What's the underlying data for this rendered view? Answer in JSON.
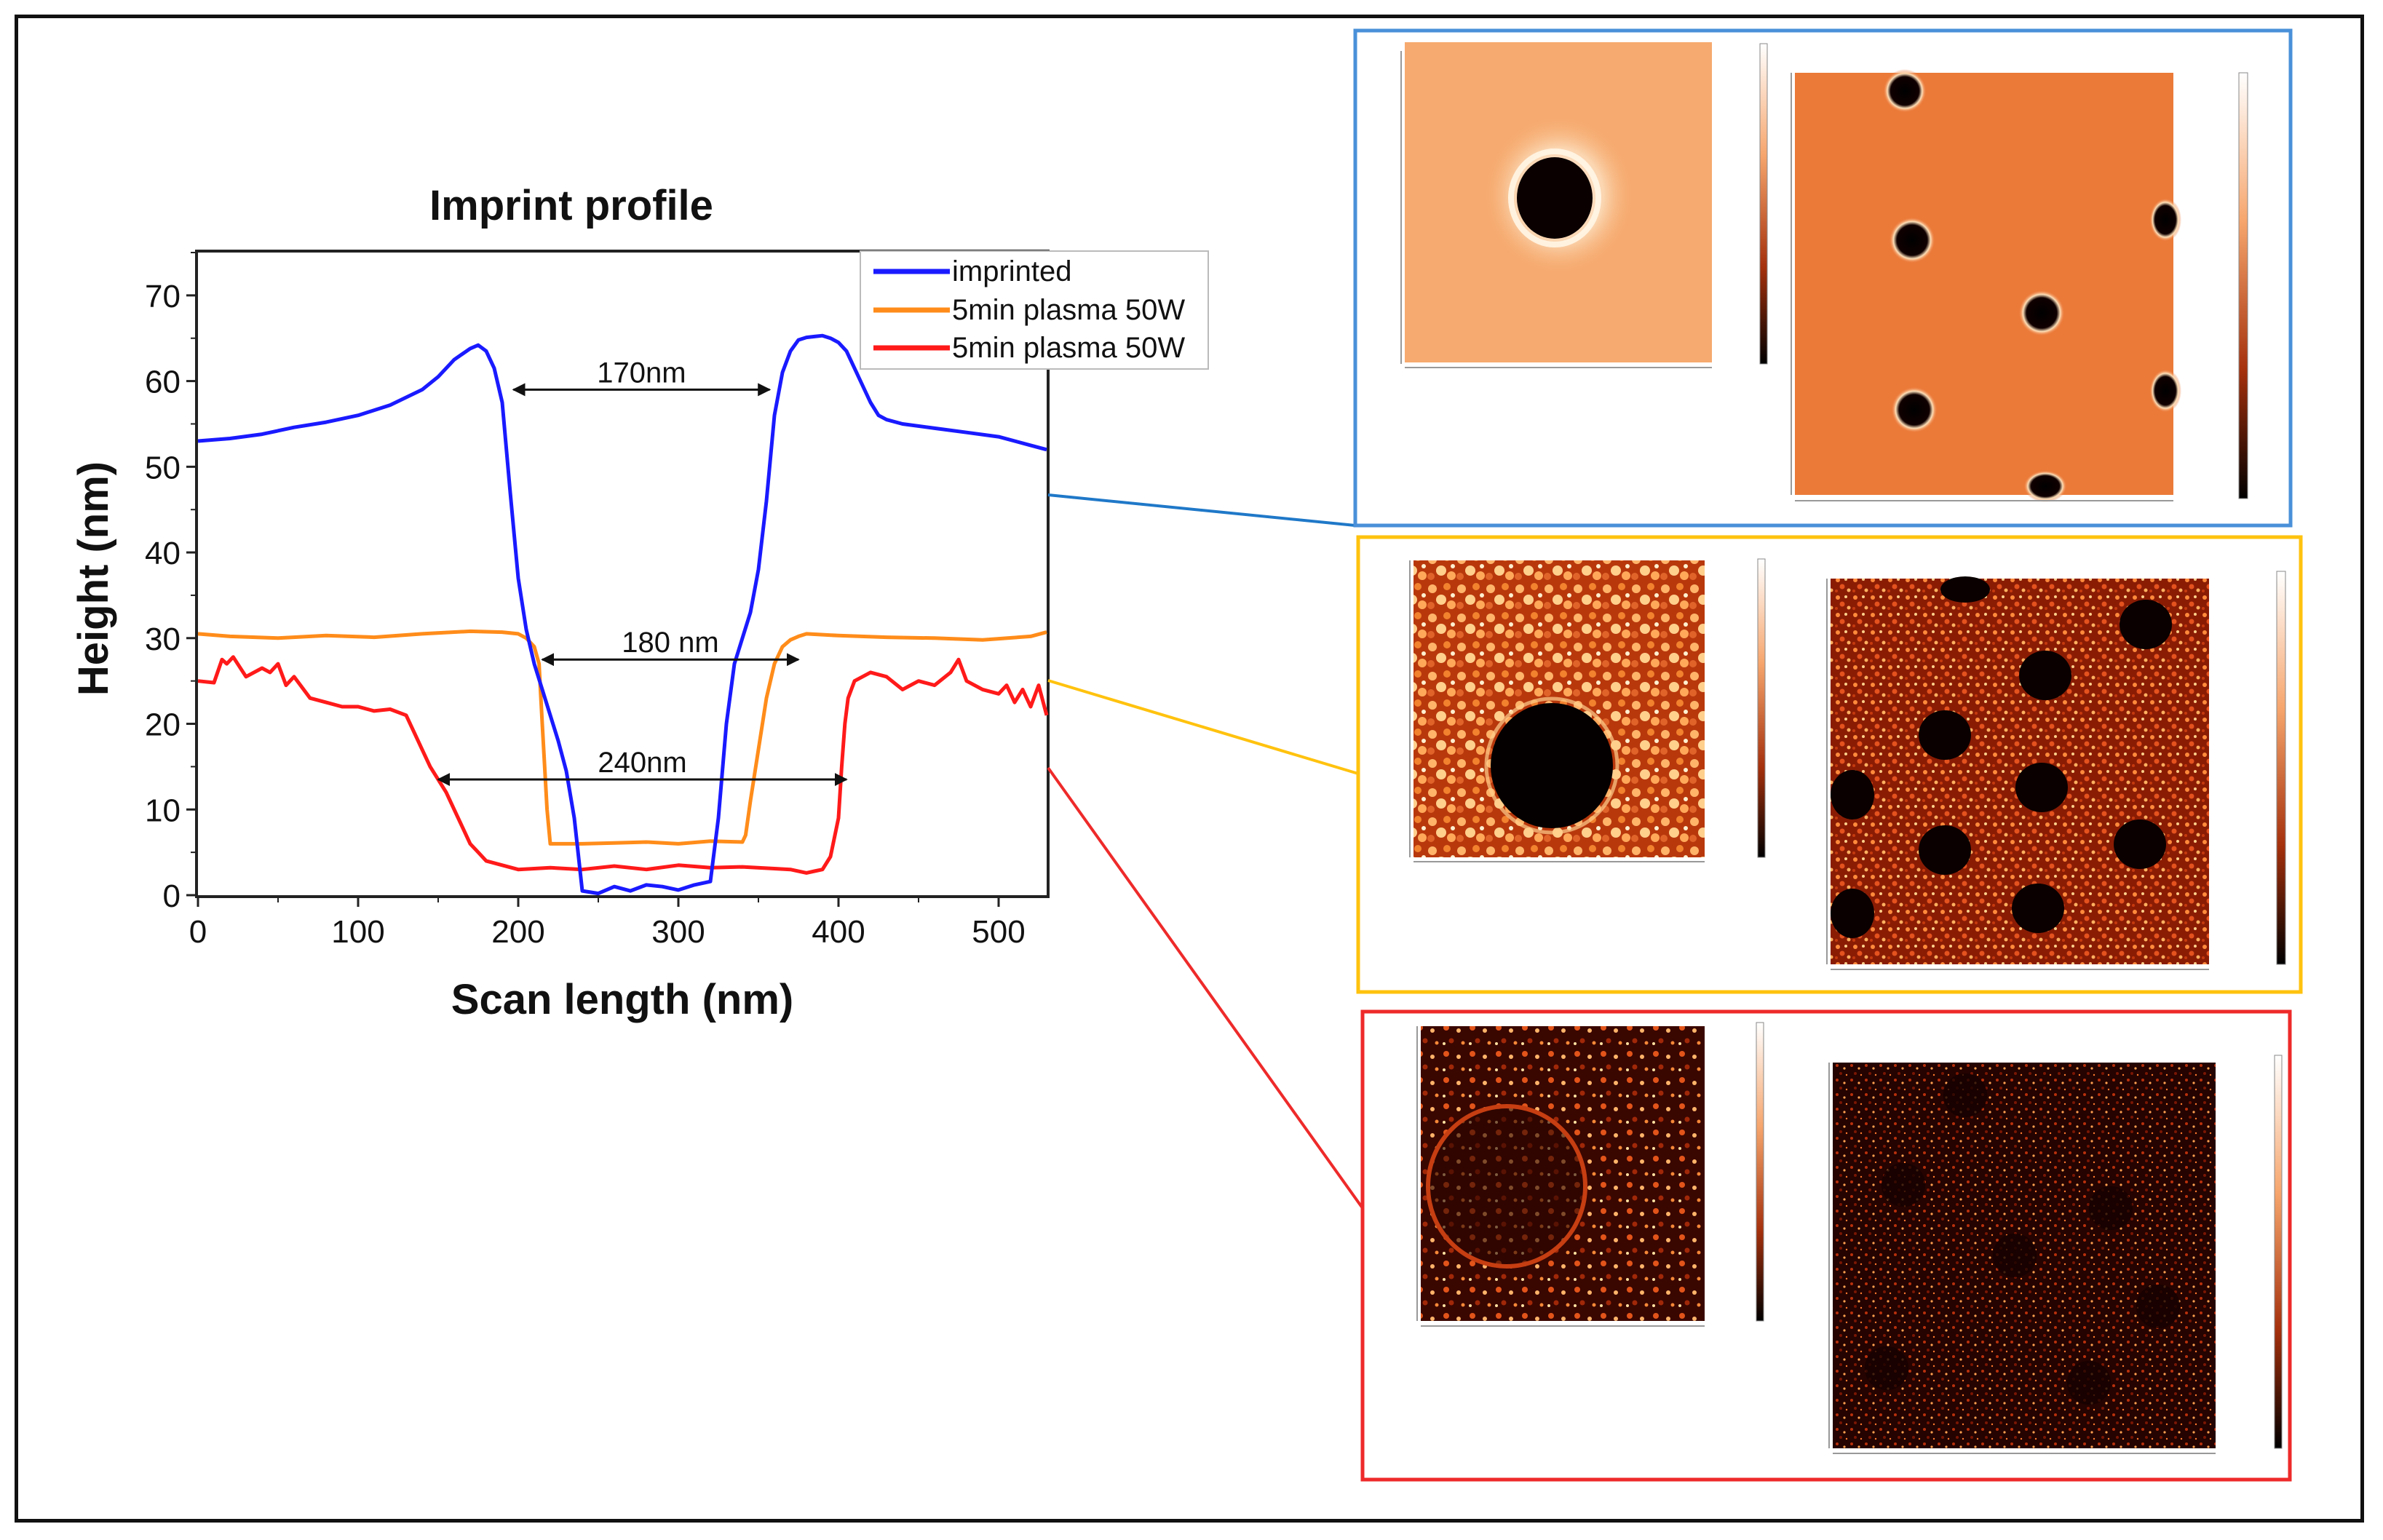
{
  "chart_data": {
    "type": "line",
    "title": "Imprint profile",
    "xlabel": "Scan length (nm)",
    "ylabel": "Height (nm)",
    "xlim": [
      0,
      530
    ],
    "ylim": [
      0,
      75
    ],
    "xticks": [
      0,
      100,
      200,
      300,
      400,
      500
    ],
    "yticks": [
      0,
      10,
      20,
      30,
      40,
      50,
      60,
      70
    ],
    "legend_position": "top-right",
    "series": [
      {
        "name": "imprinted",
        "color": "#1a1aff",
        "x": [
          0,
          20,
          40,
          60,
          80,
          100,
          120,
          140,
          150,
          160,
          170,
          175,
          180,
          185,
          190,
          195,
          200,
          205,
          210,
          215,
          220,
          225,
          230,
          235,
          240,
          250,
          260,
          270,
          280,
          290,
          300,
          310,
          320,
          325,
          330,
          335,
          340,
          345,
          350,
          355,
          360,
          365,
          370,
          375,
          380,
          385,
          390,
          395,
          400,
          405,
          410,
          415,
          420,
          425,
          430,
          440,
          460,
          480,
          500,
          520,
          530
        ],
        "y": [
          53,
          53.3,
          53.8,
          54.6,
          55.2,
          56,
          57.2,
          59,
          60.5,
          62.5,
          63.8,
          64.2,
          63.5,
          61.5,
          57.5,
          47,
          37,
          31,
          27,
          24,
          21,
          18,
          14.5,
          9,
          0.5,
          0.2,
          1,
          0.5,
          1.2,
          1,
          0.6,
          1.2,
          1.6,
          9,
          20,
          27,
          30,
          33,
          38,
          46,
          56,
          61,
          63.5,
          64.8,
          65.1,
          65.2,
          65.3,
          65,
          64.5,
          63.5,
          61.5,
          59.5,
          57.5,
          56,
          55.5,
          55,
          54.5,
          54,
          53.5,
          52.5,
          52
        ]
      },
      {
        "name": "5min plasma 50W",
        "color": "#ff8c1a",
        "x": [
          0,
          20,
          50,
          80,
          110,
          140,
          170,
          190,
          200,
          205,
          210,
          213,
          215,
          218,
          220,
          240,
          260,
          280,
          300,
          320,
          340,
          342,
          345,
          350,
          355,
          360,
          365,
          370,
          375,
          380,
          400,
          430,
          460,
          490,
          520,
          530
        ],
        "y": [
          30.5,
          30.2,
          30,
          30.3,
          30.1,
          30.5,
          30.8,
          30.7,
          30.5,
          30,
          29,
          27,
          20,
          10,
          6,
          6,
          6.1,
          6.2,
          6,
          6.3,
          6.2,
          7,
          11,
          17,
          23,
          27,
          29,
          29.8,
          30.2,
          30.5,
          30.3,
          30.1,
          30,
          29.8,
          30.2,
          30.7
        ]
      },
      {
        "name": "5min plasma 50W",
        "color": "#ff1a1a",
        "x": [
          0,
          10,
          15,
          18,
          22,
          30,
          40,
          45,
          50,
          55,
          60,
          70,
          80,
          90,
          100,
          110,
          120,
          130,
          135,
          140,
          145,
          150,
          155,
          160,
          165,
          170,
          175,
          180,
          200,
          220,
          240,
          260,
          280,
          300,
          320,
          340,
          360,
          370,
          380,
          385,
          390,
          395,
          400,
          402,
          404,
          406,
          410,
          420,
          430,
          440,
          450,
          460,
          470,
          475,
          480,
          490,
          500,
          505,
          510,
          515,
          520,
          525,
          530
        ],
        "y": [
          25,
          24.8,
          27.5,
          27,
          27.8,
          25.5,
          26.5,
          26,
          27,
          24.5,
          25.5,
          23,
          22.5,
          22,
          22,
          21.5,
          21.7,
          21,
          19,
          17,
          15,
          13.5,
          12,
          10,
          8,
          6,
          5,
          4,
          3,
          3.2,
          3,
          3.4,
          3,
          3.5,
          3.2,
          3.3,
          3.1,
          3,
          2.6,
          2.8,
          3,
          4.5,
          9,
          15,
          20,
          23,
          25,
          26,
          25.5,
          24,
          25,
          24.5,
          26,
          27.5,
          25,
          24,
          23.5,
          24.5,
          22.5,
          24,
          22,
          24.5,
          21
        ]
      }
    ],
    "annotations": [
      {
        "text": "170nm",
        "x_start": 197,
        "x_end": 357,
        "y": 59
      },
      {
        "text": "180 nm",
        "x_start": 215,
        "x_end": 375,
        "y": 27.5
      },
      {
        "text": "240nm",
        "x_start": 150,
        "x_end": 405,
        "y": 13.5
      }
    ]
  },
  "figure": {
    "connectors": [
      {
        "from_series": 0,
        "color": "#1f78c8"
      },
      {
        "from_series": 1,
        "color": "#ffc20e"
      },
      {
        "from_series": 2,
        "color": "#ee2a2a"
      }
    ],
    "afm_panels": [
      {
        "name": "imprinted-afm",
        "border_color": "#4a90d9"
      },
      {
        "name": "plasma-orange-afm",
        "border_color": "#ffc20e"
      },
      {
        "name": "plasma-red-afm",
        "border_color": "#ee2a2a"
      }
    ]
  }
}
